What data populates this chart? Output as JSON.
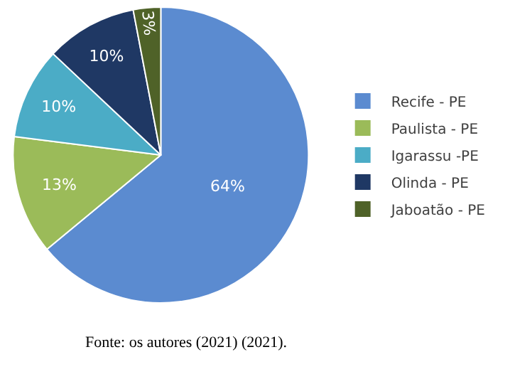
{
  "chart_data": {
    "type": "pie",
    "categories": [
      "Recife - PE",
      "Paulista - PE",
      "Igarassu -PE",
      "Olinda - PE",
      "Jaboatão - PE"
    ],
    "values": [
      64,
      13,
      10,
      10,
      3
    ],
    "value_labels": [
      "64%",
      "13%",
      "10%",
      "10%",
      "3%"
    ],
    "colors": [
      "#5b8bd0",
      "#9bbb59",
      "#4bacc6",
      "#1f3864",
      "#4f6228"
    ],
    "legend": "right",
    "annotations": [
      "Fonte: os autores (2021) (2021)."
    ]
  }
}
